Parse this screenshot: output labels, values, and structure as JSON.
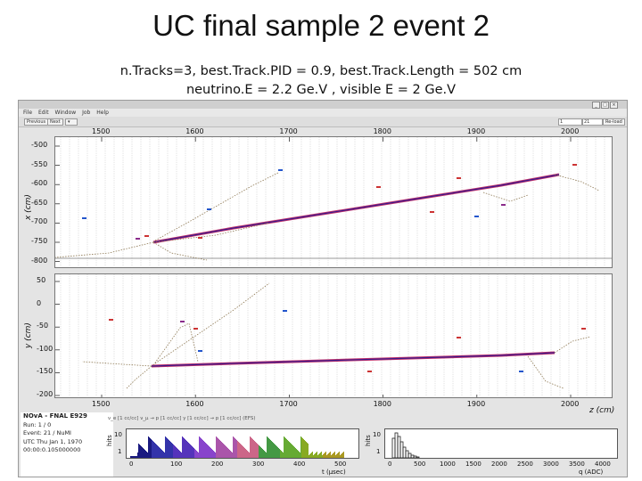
{
  "slide": {
    "title": "UC final sample 2 event 2",
    "line1": "n.Tracks=3, best.Track.PID = 0.9, best.Track.Length = 502 cm",
    "line2": "neutrino.E = 2.2 Ge.V , visible E = 2 Ge.V"
  },
  "viewer": {
    "menu": [
      "File",
      "Edit",
      "Window",
      "Job",
      "Help"
    ],
    "toolbar": {
      "prev_label": "Previous",
      "next_label": "Next",
      "run_value": "1",
      "event_value": "21",
      "reload_label": "Re-load"
    },
    "window_controls": [
      "_",
      "□",
      "×"
    ],
    "xz_view": {
      "ylabel": "x (cm)",
      "z_ticks": [
        "1500",
        "1600",
        "1700",
        "1800",
        "1900",
        "2000"
      ],
      "x_ticks": [
        "-500",
        "-550",
        "-600",
        "-650",
        "-700",
        "-750",
        "-800"
      ]
    },
    "yz_view": {
      "ylabel": "y (cm)",
      "z_ticks": [
        "1500",
        "1600",
        "1700",
        "1800",
        "1900",
        "2000"
      ],
      "y_ticks": [
        "50",
        "0",
        "-50",
        "-100",
        "-150",
        "-200"
      ],
      "zlabel": "z (cm)"
    },
    "event_info": {
      "experiment": "NOvA - FNAL E929",
      "run": "Run: 1 / 0",
      "event": "Event: 21 / NuMI",
      "utc": "UTC Thu Jan 1, 1970",
      "time": "00:00:0.105000000"
    },
    "legend": "ν_e [1 cc/cc]  ν_μ → p [1 cc/cc]  γ [1 cc/cc]  → p [1 cc/cc]  (EFS)",
    "time_hist": {
      "ylabel": "hits",
      "xlabel": "t (μsec)",
      "ticks": [
        "0",
        "100",
        "200",
        "300",
        "400",
        "500"
      ],
      "yticks": [
        "10",
        "1"
      ]
    },
    "q_hist": {
      "ylabel": "hits",
      "xlabel": "q (ADC)",
      "ticks": [
        "0",
        "500",
        "1000",
        "1500",
        "2000",
        "2500",
        "3000",
        "3500",
        "4000"
      ],
      "yticks": [
        "10",
        "1"
      ]
    },
    "colors": {
      "track": "#3a1b8c",
      "track_red": "#c0306a",
      "shower": "#8f7a55",
      "panel_grid": "#cfcfcf"
    }
  }
}
